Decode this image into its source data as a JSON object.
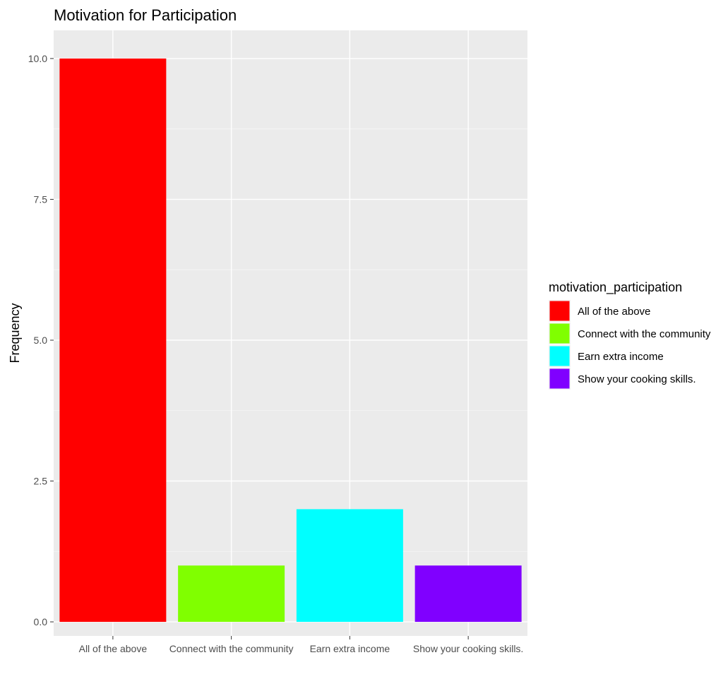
{
  "chart_data": {
    "type": "bar",
    "title": "Motivation for Participation",
    "xlabel": "",
    "ylabel": "Frequency",
    "categories": [
      "All of the above",
      "Connect with the community",
      "Earn extra income",
      "Show your cooking skills."
    ],
    "values": [
      10,
      1,
      2,
      1
    ],
    "colors": [
      "#FF0000",
      "#80FF00",
      "#00FFFF",
      "#8000FF"
    ],
    "ylim": [
      -0.25,
      10.5
    ],
    "yticks": [
      0.0,
      2.5,
      5.0,
      7.5,
      10.0
    ],
    "ytick_labels": [
      "0.0",
      "2.5",
      "5.0",
      "7.5",
      "10.0"
    ],
    "grid": true,
    "legend": {
      "title": "motivation_participation",
      "placement": "right",
      "entries": [
        "All of the above",
        "Connect with the community",
        "Earn extra income",
        "Show your cooking skills."
      ]
    }
  }
}
